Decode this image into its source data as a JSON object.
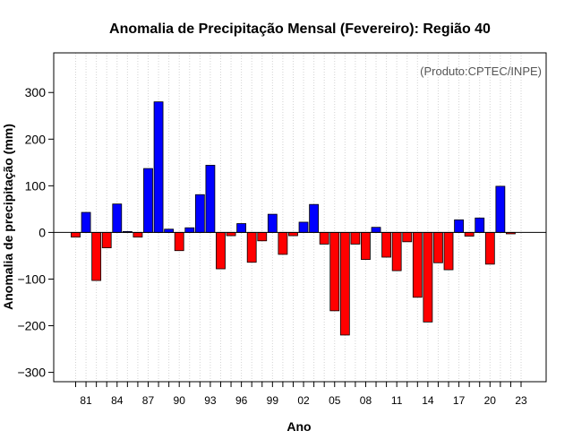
{
  "chart_data": {
    "type": "bar",
    "title": "Anomalia de Precipitação Mensal (Fevereiro): Região 40",
    "xlabel": "Ano",
    "ylabel": "Anomalia de precipitação (mm)",
    "annotation": "(Produto:CPTEC/INPE)",
    "ylim": [
      -320,
      385
    ],
    "yticks": [
      -300,
      -200,
      -100,
      0,
      100,
      200,
      300
    ],
    "grid": "vertical dotted",
    "positive_color": "#0000ff",
    "negative_color": "#ff0000",
    "years": [
      1980,
      1981,
      1982,
      1983,
      1984,
      1985,
      1986,
      1987,
      1988,
      1989,
      1990,
      1991,
      1992,
      1993,
      1994,
      1995,
      1996,
      1997,
      1998,
      1999,
      2000,
      2001,
      2002,
      2003,
      2004,
      2005,
      2006,
      2007,
      2008,
      2009,
      2010,
      2011,
      2012,
      2013,
      2014,
      2015,
      2016,
      2017,
      2018,
      2019,
      2020,
      2021,
      2022,
      2023
    ],
    "values": [
      -10,
      43,
      -103,
      -33,
      61,
      2,
      -10,
      137,
      280,
      7,
      -39,
      10,
      81,
      144,
      -78,
      -7,
      19,
      -64,
      -18,
      39,
      -47,
      -7,
      22,
      60,
      -25,
      -168,
      -220,
      -25,
      -58,
      11,
      -53,
      -82,
      -20,
      -139,
      -192,
      -65,
      -80,
      27,
      -8,
      31,
      -68,
      99,
      -3,
      0
    ],
    "xtick_labels": [
      "81",
      "84",
      "87",
      "90",
      "93",
      "96",
      "99",
      "02",
      "05",
      "08",
      "11",
      "14",
      "17",
      "20",
      "23"
    ]
  }
}
